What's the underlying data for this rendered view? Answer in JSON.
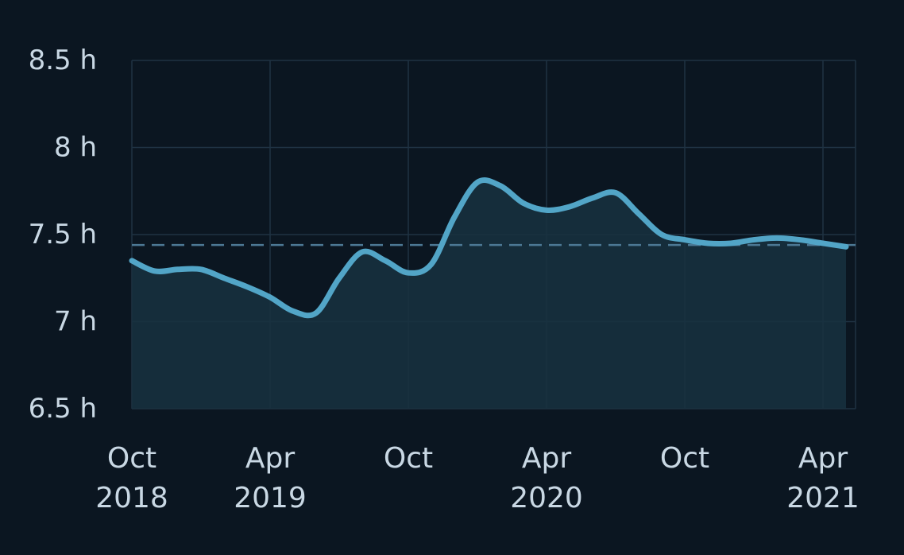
{
  "chart_data": {
    "type": "area",
    "title": "",
    "xlabel": "",
    "ylabel": "",
    "x": [
      "2018-10",
      "2018-11",
      "2018-12",
      "2019-01",
      "2019-02",
      "2019-03",
      "2019-04",
      "2019-05",
      "2019-06",
      "2019-07",
      "2019-08",
      "2019-09",
      "2019-10",
      "2019-11",
      "2019-12",
      "2020-01",
      "2020-02",
      "2020-03",
      "2020-04",
      "2020-05",
      "2020-06",
      "2020-07",
      "2020-08",
      "2020-09",
      "2020-10",
      "2020-11",
      "2020-12",
      "2021-01",
      "2021-02",
      "2021-03",
      "2021-04",
      "2021-05"
    ],
    "series": [
      {
        "values": [
          7.35,
          7.29,
          7.3,
          7.3,
          7.25,
          7.2,
          7.14,
          7.06,
          7.05,
          7.25,
          7.4,
          7.35,
          7.28,
          7.33,
          7.6,
          7.8,
          7.78,
          7.68,
          7.64,
          7.66,
          7.71,
          7.74,
          7.62,
          7.5,
          7.47,
          7.45,
          7.45,
          7.47,
          7.48,
          7.47,
          7.45,
          7.43
        ]
      }
    ],
    "average": 7.44,
    "ylim": [
      6.5,
      8.5
    ],
    "yticks": [
      {
        "value": 6.5,
        "label": "6.5 h"
      },
      {
        "value": 7,
        "label": "7 h"
      },
      {
        "value": 7.5,
        "label": "7.5 h"
      },
      {
        "value": 8,
        "label": "8 h"
      },
      {
        "value": 8.5,
        "label": "8.5 h"
      }
    ],
    "xticks": [
      {
        "index": 0,
        "label_top": "Oct",
        "label_bottom": "2018"
      },
      {
        "index": 6,
        "label_top": "Apr",
        "label_bottom": "2019"
      },
      {
        "index": 12,
        "label_top": "Oct",
        "label_bottom": ""
      },
      {
        "index": 18,
        "label_top": "Apr",
        "label_bottom": "2020"
      },
      {
        "index": 24,
        "label_top": "Oct",
        "label_bottom": ""
      },
      {
        "index": 30,
        "label_top": "Apr",
        "label_bottom": "2021"
      }
    ],
    "grid": true,
    "colors": {
      "background": "#0b1621",
      "grid": "#1f3243",
      "line": "#52a5c7",
      "fill": "#17313f",
      "average_line": "#4c7894",
      "tick_text": "#c9d8e4"
    }
  }
}
